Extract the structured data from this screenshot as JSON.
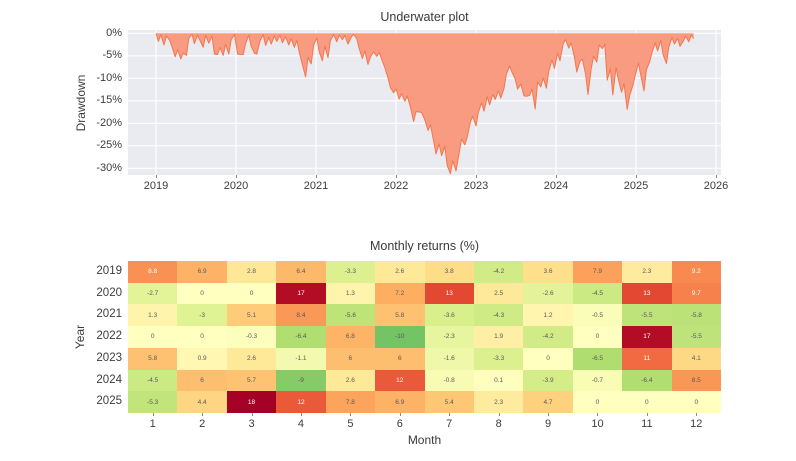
{
  "style": {
    "plot_bg": "#eaeaf1",
    "grid_color": "#ffffff",
    "area_fill": "#f89b80",
    "area_line": "#f4764d",
    "label_color": "#3d3d3d",
    "annot_dark": "#595959",
    "annot_light": "#ffffff"
  },
  "chart_data": [
    {
      "type": "area",
      "title": "Underwater plot",
      "ylabel": "Drawdown",
      "xlabel": "",
      "x_ticks": [
        "2019",
        "2020",
        "2021",
        "2022",
        "2023",
        "2024",
        "2025",
        "2026"
      ],
      "x_tick_years": [
        2019,
        2020,
        2021,
        2022,
        2023,
        2024,
        2025,
        2026
      ],
      "y_ticks": [
        "0%",
        "-5%",
        "-10%",
        "-15%",
        "-20%",
        "-25%",
        "-30%"
      ],
      "y_tick_values": [
        0,
        -5,
        -10,
        -15,
        -20,
        -25,
        -30
      ],
      "xlim": [
        2018.65,
        2026.06
      ],
      "ylim": [
        -31.5,
        0.7
      ],
      "grid": true,
      "legend": "none",
      "series": [
        {
          "name": "drawdown_pct",
          "x": [
            2019.0,
            2019.03,
            2019.06,
            2019.1,
            2019.13,
            2019.17,
            2019.2,
            2019.24,
            2019.27,
            2019.31,
            2019.34,
            2019.38,
            2019.41,
            2019.45,
            2019.48,
            2019.52,
            2019.55,
            2019.59,
            2019.62,
            2019.66,
            2019.7,
            2019.73,
            2019.77,
            2019.8,
            2019.84,
            2019.87,
            2019.91,
            2019.94,
            2019.98,
            2020.02,
            2020.05,
            2020.09,
            2020.12,
            2020.16,
            2020.19,
            2020.23,
            2020.26,
            2020.3,
            2020.34,
            2020.37,
            2020.41,
            2020.44,
            2020.48,
            2020.51,
            2020.55,
            2020.58,
            2020.62,
            2020.66,
            2020.69,
            2020.73,
            2020.76,
            2020.8,
            2020.83,
            2020.87,
            2020.9,
            2020.94,
            2020.97,
            2021.01,
            2021.04,
            2021.08,
            2021.11,
            2021.15,
            2021.18,
            2021.22,
            2021.26,
            2021.29,
            2021.33,
            2021.36,
            2021.4,
            2021.44,
            2021.47,
            2021.51,
            2021.54,
            2021.58,
            2021.61,
            2021.65,
            2021.68,
            2021.72,
            2021.76,
            2021.79,
            2021.83,
            2021.86,
            2021.9,
            2021.93,
            2021.97,
            2022.0,
            2022.04,
            2022.07,
            2022.11,
            2022.14,
            2022.18,
            2022.22,
            2022.25,
            2022.29,
            2022.32,
            2022.36,
            2022.4,
            2022.43,
            2022.47,
            2022.5,
            2022.54,
            2022.57,
            2022.61,
            2022.64,
            2022.68,
            2022.71,
            2022.75,
            2022.78,
            2022.82,
            2022.86,
            2022.89,
            2022.93,
            2022.96,
            2023.0,
            2023.03,
            2023.07,
            2023.1,
            2023.14,
            2023.17,
            2023.21,
            2023.24,
            2023.28,
            2023.31,
            2023.35,
            2023.38,
            2023.42,
            2023.45,
            2023.49,
            2023.52,
            2023.56,
            2023.6,
            2023.63,
            2023.67,
            2023.7,
            2023.74,
            2023.77,
            2023.81,
            2023.84,
            2023.88,
            2023.91,
            2023.95,
            2023.98,
            2024.02,
            2024.05,
            2024.09,
            2024.12,
            2024.16,
            2024.19,
            2024.23,
            2024.26,
            2024.3,
            2024.33,
            2024.37,
            2024.4,
            2024.44,
            2024.47,
            2024.51,
            2024.54,
            2024.58,
            2024.61,
            2024.64,
            2024.68,
            2024.71,
            2024.75,
            2024.78,
            2024.82,
            2024.85,
            2024.89,
            2024.92,
            2024.96,
            2024.99,
            2025.03,
            2025.06,
            2025.1,
            2025.13,
            2025.17,
            2025.2,
            2025.24,
            2025.27,
            2025.31,
            2025.34,
            2025.38,
            2025.41,
            2025.45,
            2025.48,
            2025.52,
            2025.55,
            2025.59,
            2025.62,
            2025.66,
            2025.69,
            2025.72
          ],
          "y": [
            0,
            -1.8,
            -0.3,
            -2.6,
            -0.6,
            -1.5,
            -3.0,
            -5.2,
            -3.6,
            -5.7,
            -4.4,
            -4.9,
            -1.1,
            -0.2,
            -2.3,
            -0.4,
            -1.6,
            -3.1,
            -0.5,
            -2.2,
            -0.6,
            -4.6,
            -4.7,
            -3.1,
            -4.9,
            -2.4,
            -4.6,
            -1.4,
            -0.3,
            -4.6,
            -4.7,
            -4.7,
            -2.3,
            -0.4,
            -2.9,
            -4.4,
            -4.6,
            -1.7,
            -0.3,
            -2.7,
            -0.9,
            -2.4,
            -0.6,
            -1.8,
            -0.4,
            -2.1,
            -0.8,
            -2.6,
            -1.2,
            -3.1,
            -1.6,
            -4.9,
            -7.0,
            -9.7,
            -5.4,
            -6.8,
            -2.7,
            -1.0,
            -4.1,
            -6.1,
            -2.9,
            -5.4,
            -1.6,
            -0.3,
            -1.9,
            -0.4,
            -1.4,
            -0.5,
            -2.4,
            -0.9,
            -0.2,
            -1.2,
            -3.4,
            -5.6,
            -3.9,
            -6.9,
            -5.3,
            -4.1,
            -5.1,
            -4.3,
            -6.2,
            -7.6,
            -9.9,
            -12.1,
            -13.2,
            -12.4,
            -14.6,
            -13.4,
            -15.1,
            -13.9,
            -16.4,
            -19.6,
            -17.4,
            -17.5,
            -17.6,
            -19.2,
            -21.6,
            -20.3,
            -23.9,
            -26.8,
            -24.6,
            -27.2,
            -25.1,
            -29.4,
            -31.2,
            -28.3,
            -30.6,
            -27.6,
            -23.5,
            -24.8,
            -23.1,
            -19.7,
            -18.4,
            -20.6,
            -17.6,
            -15.4,
            -17.3,
            -14.1,
            -15.9,
            -13.6,
            -14.7,
            -12.8,
            -14.4,
            -12.3,
            -9.1,
            -7.3,
            -8.6,
            -10.2,
            -12.4,
            -11.3,
            -13.9,
            -14.0,
            -13.8,
            -12.4,
            -16.8,
            -10.8,
            -11.9,
            -9.9,
            -12.2,
            -8.4,
            -5.9,
            -7.8,
            -4.4,
            -6.1,
            -2.3,
            -1.4,
            -3.3,
            -2.1,
            -5.3,
            -8.6,
            -6.2,
            -5.8,
            -9.1,
            -13.6,
            -7.9,
            -5.1,
            -6.4,
            -2.6,
            -3.4,
            -2.4,
            -10.4,
            -7.9,
            -13.7,
            -7.6,
            -10.3,
            -13.1,
            -11.2,
            -16.9,
            -13.9,
            -11.6,
            -9.4,
            -6.6,
            -9.3,
            -12.8,
            -8.1,
            -6.4,
            -4.3,
            -2.1,
            -3.9,
            -1.6,
            -4.8,
            -6.7,
            -3.1,
            -0.9,
            -2.4,
            -1.1,
            -2.9,
            -1.8,
            -0.6,
            -1.9,
            -0.4,
            -1.2
          ]
        }
      ]
    },
    {
      "type": "heatmap",
      "title": "Monthly returns (%)",
      "xlabel": "Month",
      "ylabel": "Year",
      "rows": [
        "2019",
        "2020",
        "2021",
        "2022",
        "2023",
        "2024",
        "2025"
      ],
      "cols": [
        "1",
        "2",
        "3",
        "4",
        "5",
        "6",
        "7",
        "8",
        "9",
        "10",
        "11",
        "12"
      ],
      "values": [
        [
          8.8,
          6.9,
          2.8,
          6.4,
          -3.3,
          2.6,
          3.8,
          -4.2,
          3.6,
          7.9,
          2.3,
          9.2
        ],
        [
          -2.7,
          0,
          0,
          17,
          1.3,
          7.2,
          13,
          2.5,
          -2.6,
          -4.5,
          13,
          9.7
        ],
        [
          1.3,
          -3,
          5.1,
          8.4,
          -5.6,
          5.8,
          -3.6,
          -4.3,
          1.2,
          -0.5,
          -5.5,
          -5.8
        ],
        [
          0,
          0,
          -0.3,
          -6.4,
          6.8,
          -10,
          -2.3,
          1.9,
          -4.2,
          0,
          17,
          -5.5
        ],
        [
          5.8,
          0.9,
          2.6,
          -1.1,
          6,
          6,
          -1.6,
          -3.3,
          0,
          -6.5,
          11,
          4.1
        ],
        [
          -4.5,
          6,
          5.7,
          -9,
          2.6,
          12,
          -0.8,
          0.1,
          -3.9,
          -0.7,
          -6.4,
          8.5
        ],
        [
          -5.3,
          4.4,
          18,
          12,
          7.8,
          6.9,
          5.4,
          2.3,
          4.7,
          0,
          0,
          0
        ]
      ],
      "colormap": "RdYlGn_r",
      "color_domain": [
        -18,
        18
      ],
      "grid": false,
      "legend": "none"
    }
  ]
}
